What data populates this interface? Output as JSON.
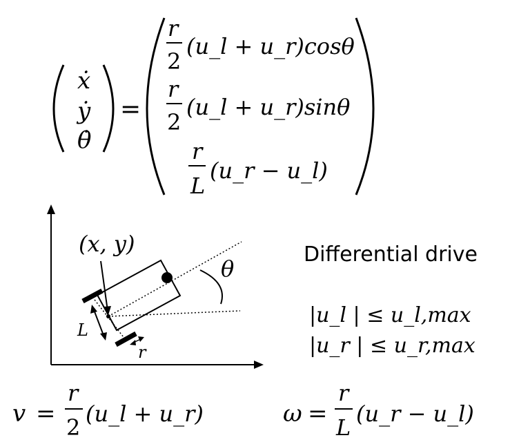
{
  "equation": {
    "lhs": [
      "ẋ",
      "ẏ",
      "θ̇"
    ],
    "equals": "=",
    "rows": [
      {
        "coef_num": "r",
        "coef_den": "2",
        "expr": "(u_l + u_r)cosθ"
      },
      {
        "coef_num": "r",
        "coef_den": "2",
        "expr": "(u_l + u_r)sinθ"
      },
      {
        "coef_num": "r",
        "coef_den": "L",
        "expr": "(u_r − u_l)"
      }
    ]
  },
  "diagram": {
    "point_label": "(x, y)",
    "angle_label": "θ",
    "length_label": "L",
    "radius_label": "r"
  },
  "title": "Differential drive",
  "constraints": [
    "|u_l | ≤ u_l,max",
    "|u_r | ≤ u_r,max"
  ],
  "velocity": {
    "var": "v",
    "equals": "=",
    "num": "r",
    "den": "2",
    "expr": "(u_l + u_r)"
  },
  "omega": {
    "var": "ω",
    "equals": "=",
    "num": "r",
    "den": "L",
    "expr": "(u_r − u_l)"
  }
}
